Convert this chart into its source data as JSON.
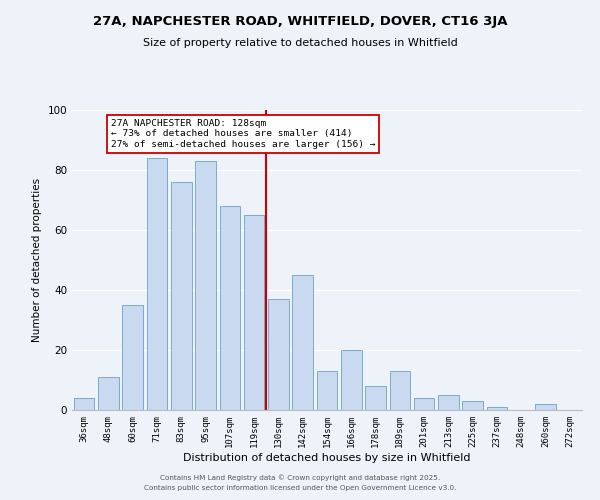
{
  "title": "27A, NAPCHESTER ROAD, WHITFIELD, DOVER, CT16 3JA",
  "subtitle": "Size of property relative to detached houses in Whitfield",
  "xlabel": "Distribution of detached houses by size in Whitfield",
  "ylabel": "Number of detached properties",
  "bar_labels": [
    "36sqm",
    "48sqm",
    "60sqm",
    "71sqm",
    "83sqm",
    "95sqm",
    "107sqm",
    "119sqm",
    "130sqm",
    "142sqm",
    "154sqm",
    "166sqm",
    "178sqm",
    "189sqm",
    "201sqm",
    "213sqm",
    "225sqm",
    "237sqm",
    "248sqm",
    "260sqm",
    "272sqm"
  ],
  "bar_heights": [
    4,
    11,
    35,
    84,
    76,
    83,
    68,
    65,
    37,
    45,
    13,
    20,
    8,
    13,
    4,
    5,
    3,
    1,
    0,
    2,
    0
  ],
  "bar_color": "#c9d9f0",
  "bar_edge_color": "#7aaad4",
  "vline_x_index": 8,
  "vline_color": "#cc0000",
  "annotation_title": "27A NAPCHESTER ROAD: 128sqm",
  "annotation_line2": "← 73% of detached houses are smaller (414)",
  "annotation_line3": "27% of semi-detached houses are larger (156) →",
  "annotation_box_color": "#ffffff",
  "annotation_box_edge": "#cc0000",
  "ylim": [
    0,
    100
  ],
  "yticks": [
    0,
    20,
    40,
    60,
    80,
    100
  ],
  "footnote1": "Contains HM Land Registry data © Crown copyright and database right 2025.",
  "footnote2": "Contains public sector information licensed under the Open Government Licence v3.0.",
  "bg_color": "#eef2f9"
}
